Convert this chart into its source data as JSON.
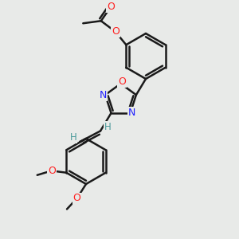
{
  "bg_color": "#e8eae8",
  "bond_color": "#1a1a1a",
  "bond_width": 1.8,
  "N_color": "#2020ff",
  "O_color": "#ff2020",
  "H_color": "#4a9a9a",
  "label_fontsize": 8.5,
  "figsize": [
    3.0,
    3.0
  ],
  "dpi": 100,
  "xlim": [
    0,
    10
  ],
  "ylim": [
    0,
    10
  ]
}
